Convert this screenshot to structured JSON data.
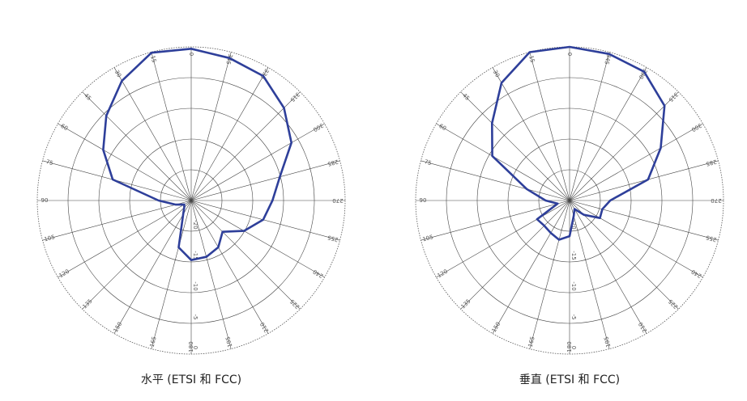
{
  "chart_data": [
    {
      "type": "polar",
      "title": "水平 (ETSI 和 FCC)",
      "color": "#2e3f9a",
      "theta": [
        0,
        15,
        30,
        45,
        60,
        75,
        90,
        105,
        120,
        135,
        150,
        165,
        180,
        195,
        210,
        225,
        240,
        255,
        270,
        285,
        300,
        315,
        330,
        345
      ],
      "values": [
        -0.3,
        -0.1,
        -2.5,
        -5.5,
        -8.5,
        -11.8,
        -19.7,
        -22.4,
        -23.7,
        -23.4,
        -22.4,
        -17.1,
        -15.3,
        -15.5,
        -16.2,
        -17.8,
        -15.1,
        -12.9,
        -11.8,
        -10.1,
        -6.2,
        -3.7,
        -1.6,
        -1.0
      ],
      "rlim": [
        -25,
        0
      ],
      "rticks": [
        -20,
        -15,
        -10,
        -5,
        0
      ]
    },
    {
      "type": "polar",
      "title": "垂直 (ETSI 和 FCC)",
      "color": "#2e3f9a",
      "theta": [
        0,
        15,
        30,
        45,
        60,
        75,
        90,
        105,
        120,
        135,
        150,
        165,
        180,
        195,
        210,
        225,
        240,
        255,
        270,
        285,
        300,
        315,
        330,
        345
      ],
      "values": [
        0,
        0,
        -2.9,
        -7.2,
        -10.5,
        -17.8,
        -21.1,
        -23.0,
        -18.9,
        -19.2,
        -18.9,
        -18.4,
        -19.2,
        -22.4,
        -23.4,
        -21.7,
        -19.3,
        -19.5,
        -18.4,
        -11.8,
        -7.9,
        -3.2,
        -0.8,
        -0.3
      ],
      "rlim": [
        -25,
        0
      ],
      "rticks": [
        -20,
        -15,
        -10,
        -5,
        0
      ]
    }
  ]
}
